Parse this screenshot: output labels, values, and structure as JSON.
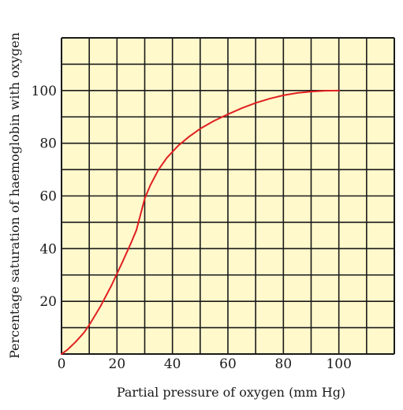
{
  "chart_data": {
    "type": "line",
    "title": "",
    "xlabel": "Partial pressure of oxygen (mm Hg)",
    "ylabel": "Percentage saturation of haemoglobin with oxygen",
    "xlim": [
      0,
      120
    ],
    "ylim": [
      0,
      120
    ],
    "grid": true,
    "x_ticks": [
      "0",
      "20",
      "40",
      "60",
      "80",
      "100"
    ],
    "y_ticks": [
      "20",
      "40",
      "60",
      "80",
      "100"
    ],
    "colors": {
      "plot_bg": "#fff9cc",
      "grid": "#1a1a1a",
      "curve": "#e02020"
    },
    "series": [
      {
        "x": [
          0,
          2,
          5,
          8,
          10,
          14,
          18,
          20,
          22,
          25,
          27,
          28,
          29,
          30,
          32,
          35,
          38,
          42,
          46,
          50,
          55,
          60,
          65,
          70,
          75,
          80,
          85,
          90,
          95,
          100
        ],
        "y": [
          0,
          1.5,
          4.5,
          8,
          11,
          18,
          26,
          30.5,
          35,
          42,
          47,
          51,
          55,
          59,
          64,
          70,
          74.5,
          79,
          82.5,
          85.5,
          88.5,
          91,
          93.3,
          95.3,
          96.9,
          98.2,
          99.1,
          99.6,
          99.9,
          100
        ]
      }
    ]
  }
}
